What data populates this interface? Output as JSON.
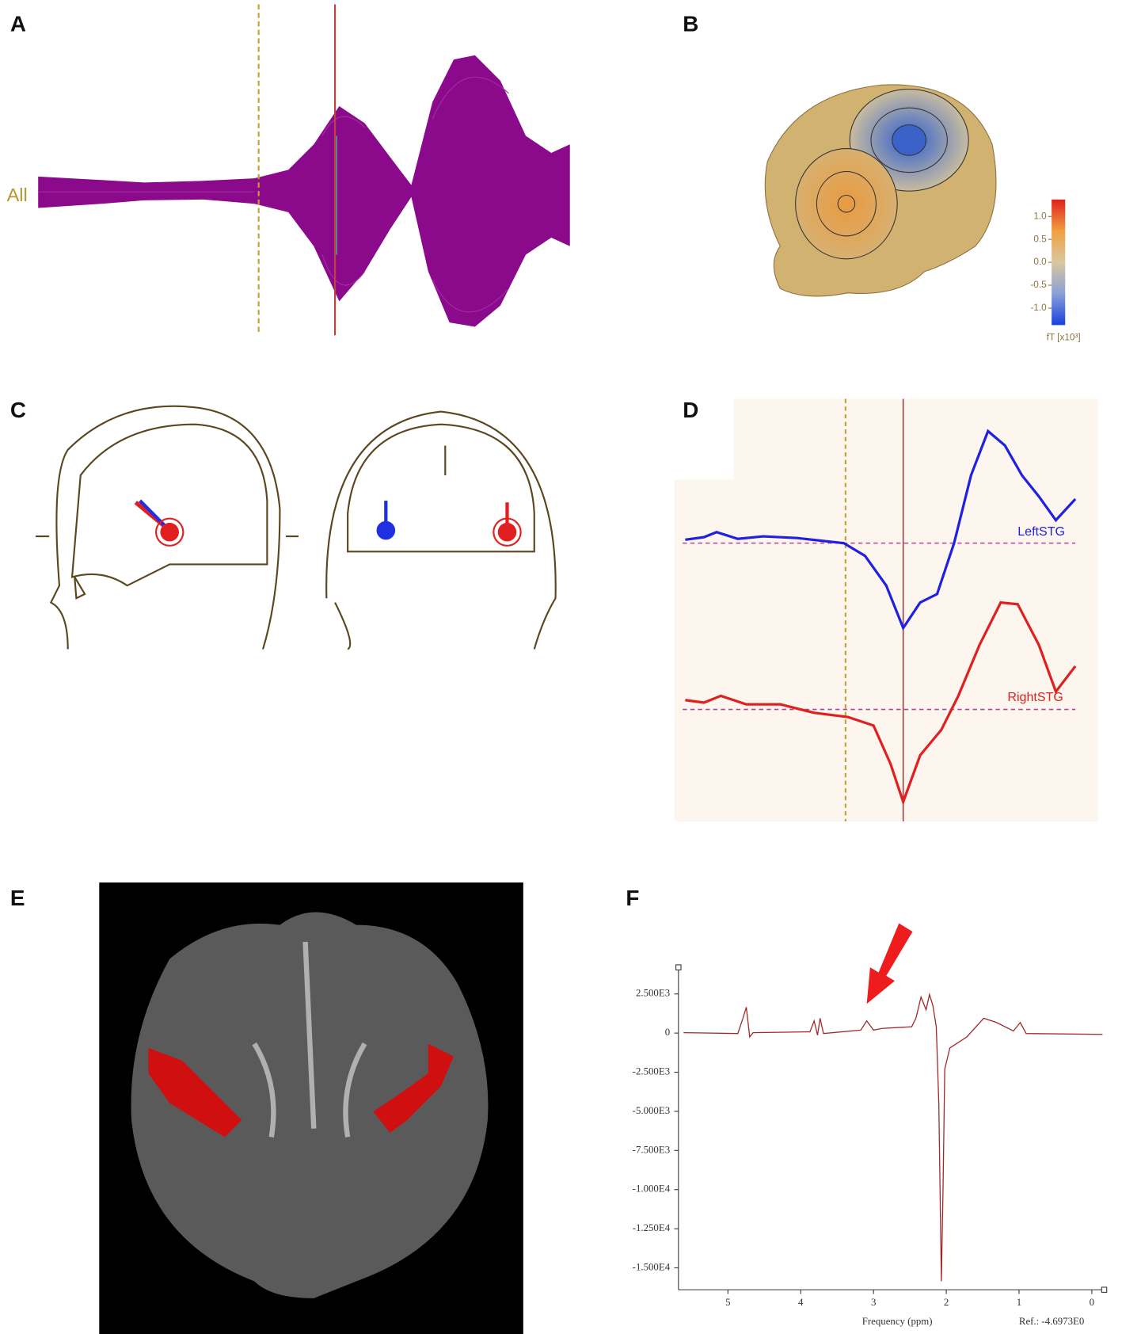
{
  "panels": [
    {
      "label": "A",
      "channel_label": "All"
    },
    {
      "label": "B",
      "colorbar": {
        "lim": [
          -1.37,
          1.37
        ],
        "ticks": [
          {
            "value": 1.0,
            "label": "1.0"
          },
          {
            "value": 0.5,
            "label": "0.5"
          },
          {
            "value": 0.0,
            "label": "0.0"
          },
          {
            "value": -0.5,
            "label": "-0.5"
          },
          {
            "value": -1.0,
            "label": "-1.0"
          }
        ],
        "unit": "fT [x10³]"
      }
    },
    {
      "label": "C"
    },
    {
      "label": "D",
      "traces": [
        "LeftSTG",
        "RightSTG"
      ]
    },
    {
      "label": "E"
    },
    {
      "label": "F",
      "type": "line",
      "xlabel": "Frequency (ppm)",
      "annotation": "Ref.: -4.6973E0",
      "xlim": [
        5.68,
        -0.17
      ],
      "xticks": [
        5,
        4,
        3,
        2,
        1,
        0
      ],
      "ylim": [
        -16400,
        4200
      ],
      "yticks": [
        {
          "value": 2500,
          "label": "2.500E3"
        },
        0,
        {
          "value": -2500,
          "label": "-2.500E3"
        },
        {
          "value": -5000,
          "label": "-5.000E3"
        },
        {
          "value": -7500,
          "label": "-7.500E3"
        },
        {
          "value": -10000,
          "label": "-1.000E4"
        },
        {
          "value": -12500,
          "label": "-1.250E4"
        },
        {
          "value": -15000,
          "label": "-1.500E4"
        }
      ]
    }
  ]
}
